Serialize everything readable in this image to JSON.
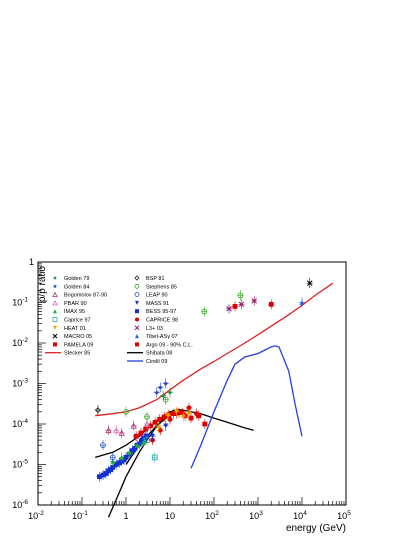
{
  "chart_data": {
    "type": "scatter",
    "xlabel": "energy (GeV)",
    "ylabel": "p̄/p ratio",
    "x_scale": "log",
    "y_scale": "log",
    "xlim": [
      0.01,
      100000
    ],
    "ylim": [
      1e-06,
      1
    ],
    "x_ticks": [
      {
        "value": 0.01,
        "base": "10",
        "exp": "-2"
      },
      {
        "value": 0.1,
        "base": "10",
        "exp": "-1"
      },
      {
        "value": 1,
        "base": "1",
        "exp": ""
      },
      {
        "value": 10,
        "base": "10",
        "exp": ""
      },
      {
        "value": 100,
        "base": "10",
        "exp": "2"
      },
      {
        "value": 1000,
        "base": "10",
        "exp": "3"
      },
      {
        "value": 10000,
        "base": "10",
        "exp": "4"
      },
      {
        "value": 100000,
        "base": "10",
        "exp": "5"
      }
    ],
    "y_ticks": [
      {
        "value": 1e-06,
        "base": "10",
        "exp": "-6"
      },
      {
        "value": 1e-05,
        "base": "10",
        "exp": "-5"
      },
      {
        "value": 0.0001,
        "base": "10",
        "exp": "-4"
      },
      {
        "value": 0.001,
        "base": "10",
        "exp": "-3"
      },
      {
        "value": 0.01,
        "base": "10",
        "exp": "-2"
      },
      {
        "value": 0.1,
        "base": "10",
        "exp": "-1"
      },
      {
        "value": 1,
        "base": "1",
        "exp": ""
      }
    ],
    "legend_position": "top-left",
    "legend_columns": [
      [
        {
          "label": "Golden 79",
          "color": "#1a8a3a",
          "marker": "star"
        },
        {
          "label": "Golden 84",
          "color": "#1a3ad6",
          "marker": "star"
        },
        {
          "label": "Bogomolov 87-90",
          "color": "#b0306a",
          "marker": "triangle-open"
        },
        {
          "label": "PBAR 90",
          "color": "#d070c0",
          "marker": "triangle-open"
        },
        {
          "label": "IMAX 95",
          "color": "#20b030",
          "marker": "triangle"
        },
        {
          "label": "Caprice 97",
          "color": "#2aa0a0",
          "marker": "square-open"
        },
        {
          "label": "HEAT 01",
          "color": "#f0a000",
          "marker": "triangle-down"
        },
        {
          "label": "MACRO 05",
          "color": "#000000",
          "marker": "cross"
        },
        {
          "label": "PAMELA 09",
          "color": "#e00000",
          "marker": "square"
        },
        {
          "label": "Stecker 85",
          "color": "#e02020",
          "marker": "line"
        }
      ],
      [
        {
          "label": "BSP 81",
          "color": "#202020",
          "marker": "diamond-open"
        },
        {
          "label": "Stephens 85",
          "color": "#30a020",
          "marker": "circle-open"
        },
        {
          "label": "LEAP 90",
          "color": "#2050c0",
          "marker": "circle-open"
        },
        {
          "label": "MASS 91",
          "color": "#2030c0",
          "marker": "triangle-down"
        },
        {
          "label": "BESS 95-97",
          "color": "#1030d0",
          "marker": "square"
        },
        {
          "label": "CAPRICE 98",
          "color": "#e00000",
          "marker": "circle"
        },
        {
          "label": "L3+ 03",
          "color": "#901060",
          "marker": "cross"
        },
        {
          "label": "Tibet-ASγ 07",
          "color": "#2060e0",
          "marker": "triangle"
        },
        {
          "label": "Argo 09 - 90% C.L.",
          "color": "#e00000",
          "marker": "square"
        },
        {
          "label": "Shibata 08",
          "color": "#000000",
          "marker": "line"
        },
        {
          "label": "Cirelli 09",
          "color": "#2040e0",
          "marker": "line"
        }
      ]
    ],
    "series": [
      {
        "name": "Stecker 85",
        "kind": "line",
        "color": "#e02020",
        "x": [
          0.2,
          0.5,
          1,
          2,
          5,
          10,
          20,
          50,
          100,
          200,
          500,
          1000,
          2000,
          5000,
          10000,
          20000,
          50000
        ],
        "y": [
          0.00016,
          0.00018,
          0.0002,
          0.00025,
          0.0004,
          0.0007,
          0.0012,
          0.0023,
          0.0035,
          0.0055,
          0.01,
          0.016,
          0.026,
          0.05,
          0.085,
          0.15,
          0.3
        ]
      },
      {
        "name": "Shibata 08",
        "kind": "line",
        "color": "#000000",
        "x": [
          0.2,
          0.5,
          1,
          2,
          3,
          5,
          10,
          15,
          20,
          50,
          100,
          200,
          500,
          800
        ],
        "y": [
          1.5e-05,
          2e-05,
          3e-05,
          5e-05,
          7.5e-05,
          0.00012,
          0.0002,
          0.00023,
          0.00022,
          0.00018,
          0.00014,
          0.00011,
          8e-05,
          7e-05
        ]
      },
      {
        "name": "",
        "kind": "line",
        "color": "#000000",
        "x": [
          0.4,
          0.7,
          1,
          2,
          3,
          5,
          10,
          15
        ],
        "y": [
          5e-07,
          2e-06,
          5e-06,
          2e-05,
          4e-05,
          9e-05,
          0.0002,
          0.00022
        ]
      },
      {
        "name": "",
        "kind": "line",
        "color": "#000000",
        "x": [
          1,
          2,
          3,
          5,
          10,
          15
        ],
        "y": [
          1e-05,
          3e-05,
          5e-05,
          9e-05,
          0.00017,
          0.0002
        ]
      },
      {
        "name": "Cirelli 09",
        "kind": "line",
        "color": "#2040e0",
        "x": [
          30,
          50,
          100,
          200,
          300,
          500,
          1000,
          2000,
          2500,
          3000,
          5000,
          7000,
          10000
        ],
        "y": [
          8e-06,
          3e-05,
          0.0002,
          0.0012,
          0.003,
          0.0045,
          0.0055,
          0.008,
          0.0085,
          0.008,
          0.002,
          0.0003,
          5e-05
        ]
      },
      {
        "name": "PAMELA 09",
        "kind": "points",
        "marker": "square",
        "color": "#e00000",
        "x": [
          1.7,
          2.2,
          2.8,
          3.6,
          4.6,
          5.8,
          7.4,
          9.4,
          12,
          16,
          22,
          30,
          45,
          62
        ],
        "y": [
          5e-05,
          6e-05,
          7.5e-05,
          9e-05,
          0.00011,
          0.00013,
          0.00015,
          0.00017,
          0.00018,
          0.00019,
          0.00016,
          0.00014,
          0.00016,
          0.0001
        ]
      },
      {
        "name": "BESS 95-97",
        "kind": "points",
        "marker": "square",
        "color": "#1030d0",
        "x": [
          0.25,
          0.3,
          0.35,
          0.4,
          0.45,
          0.5,
          0.6,
          0.7,
          0.8,
          0.9,
          1.0,
          1.2,
          1.4,
          1.6,
          1.8,
          2.0,
          2.3,
          2.6,
          3.0
        ],
        "y": [
          5e-06,
          5.5e-06,
          6e-06,
          7e-06,
          7.5e-06,
          8.5e-06,
          1e-05,
          1.1e-05,
          1.2e-05,
          1.3e-05,
          1.5e-05,
          1.8e-05,
          2.2e-05,
          2.5e-05,
          3e-05,
          3.2e-05,
          4e-05,
          4.5e-05,
          5e-05
        ]
      },
      {
        "name": "CAPRICE 98",
        "kind": "points",
        "marker": "circle",
        "color": "#e00000",
        "x": [
          4,
          6,
          10,
          14,
          19,
          27,
          40
        ],
        "y": [
          4e-05,
          7e-05,
          0.00013,
          0.00018,
          0.00019,
          0.00025,
          0.00018
        ]
      },
      {
        "name": "HEAT 01",
        "kind": "points",
        "marker": "triangle-down",
        "color": "#f0a000",
        "x": [
          5.5,
          9,
          14,
          20,
          27
        ],
        "y": [
          8e-05,
          0.00016,
          0.0002,
          0.00015,
          0.00018
        ]
      },
      {
        "name": "MASS 91",
        "kind": "points",
        "marker": "triangle-down",
        "color": "#2030c0",
        "x": [
          4,
          8
        ],
        "y": [
          5e-05,
          9e-05
        ]
      },
      {
        "name": "IMAX 95",
        "kind": "points",
        "marker": "triangle",
        "color": "#20b030",
        "x": [
          0.5,
          0.8,
          1.2,
          1.8,
          2.5
        ],
        "y": [
          1.2e-05,
          1.5e-05,
          2e-05,
          3e-05,
          3.5e-05
        ]
      },
      {
        "name": "Caprice 97",
        "kind": "points",
        "marker": "square-open",
        "color": "#2aa0a0",
        "x": [
          3,
          4.5
        ],
        "y": [
          4e-05,
          1.5e-05
        ]
      },
      {
        "name": "Golden 79",
        "kind": "points",
        "marker": "star",
        "color": "#1a8a3a",
        "x": [
          7,
          10
        ],
        "y": [
          0.0005,
          0.0006
        ]
      },
      {
        "name": "Golden 84",
        "kind": "points",
        "marker": "star",
        "color": "#1a3ad6",
        "x": [
          5,
          6,
          8
        ],
        "y": [
          0.0006,
          0.0008,
          0.001
        ]
      },
      {
        "name": "Bogomolov 87-90",
        "kind": "points",
        "marker": "triangle-open",
        "color": "#b0306a",
        "x": [
          0.4,
          0.8,
          1.5
        ],
        "y": [
          7e-05,
          6e-05,
          9e-05
        ]
      },
      {
        "name": "PBAR 90",
        "kind": "points",
        "marker": "triangle-open",
        "color": "#d070c0",
        "x": [
          0.6,
          3
        ],
        "y": [
          7e-05,
          0.0001
        ]
      },
      {
        "name": "BSP 81",
        "kind": "points",
        "marker": "diamond-open",
        "color": "#202020",
        "x": [
          0.23
        ],
        "y": [
          0.00022
        ]
      },
      {
        "name": "Stephens 85",
        "kind": "points",
        "marker": "circle-open",
        "color": "#30a020",
        "x": [
          1,
          3,
          8,
          60,
          400
        ],
        "y": [
          0.0002,
          0.00015,
          0.0004,
          0.06,
          0.15
        ]
      },
      {
        "name": "LEAP 90",
        "kind": "points",
        "marker": "circle-open",
        "color": "#2050c0",
        "x": [
          0.3,
          0.5
        ],
        "y": [
          3e-05,
          1.5e-05
        ]
      },
      {
        "name": "L3+ 03",
        "kind": "points",
        "marker": "cross",
        "color": "#901060",
        "x": [
          220,
          420,
          820
        ],
        "y": [
          0.07,
          0.09,
          0.11
        ]
      },
      {
        "name": "MACRO 05",
        "kind": "points",
        "marker": "cross",
        "color": "#000000",
        "x": [
          15000
        ],
        "y": [
          0.3
        ]
      },
      {
        "name": "Tibet-ASγ 07",
        "kind": "points",
        "marker": "triangle",
        "color": "#2060e0",
        "x": [
          10000
        ],
        "y": [
          0.1
        ]
      },
      {
        "name": "Argo 09 - 90% C.L.",
        "kind": "points",
        "marker": "square",
        "color": "#e00000",
        "x": [
          300,
          2000
        ],
        "y": [
          0.08,
          0.09
        ]
      }
    ]
  }
}
